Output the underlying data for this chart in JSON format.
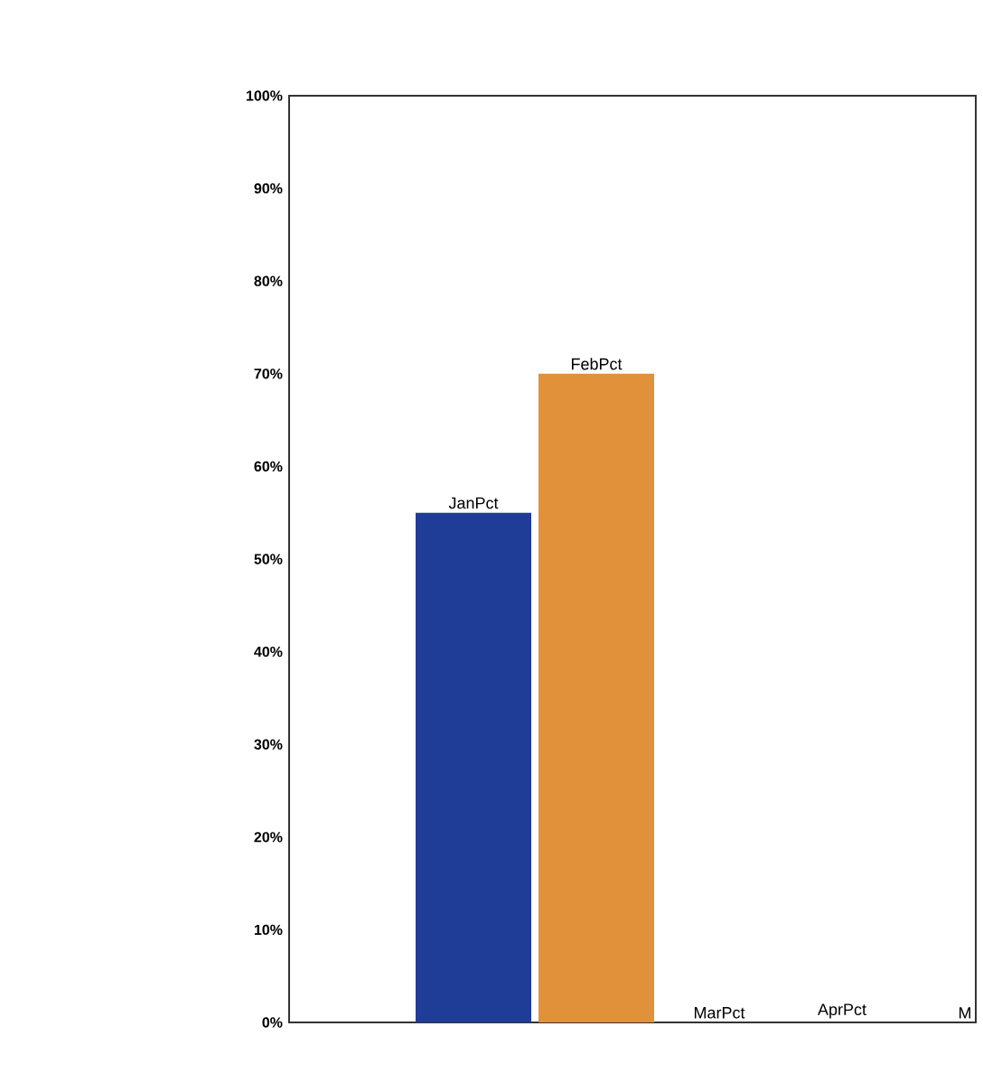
{
  "chart_data": {
    "type": "bar",
    "categories": [
      "JanPct",
      "FebPct",
      "MarPct",
      "AprPct",
      "M"
    ],
    "values": [
      55,
      70,
      0,
      0,
      0
    ],
    "colors": [
      "#1f3c96",
      "#e0913a",
      "#1f3c96",
      "#e0913a",
      "#1f3c96"
    ],
    "ylim": [
      0,
      100
    ],
    "yticks": [
      {
        "value": 0,
        "label": "0%"
      },
      {
        "value": 10,
        "label": "10%"
      },
      {
        "value": 20,
        "label": "20%"
      },
      {
        "value": 30,
        "label": "30%"
      },
      {
        "value": 40,
        "label": "40%"
      },
      {
        "value": 50,
        "label": "50%"
      },
      {
        "value": 60,
        "label": "60%"
      },
      {
        "value": 70,
        "label": "70%"
      },
      {
        "value": 80,
        "label": "80%"
      },
      {
        "value": 90,
        "label": "90%"
      },
      {
        "value": 100,
        "label": "100%"
      }
    ],
    "grid": false
  }
}
